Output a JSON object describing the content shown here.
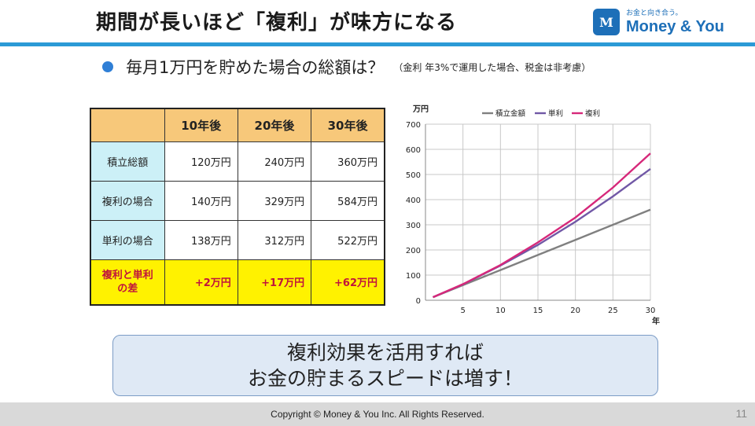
{
  "slide": {
    "title": "期間が長いほど「複利」が味方になる",
    "subtitle": "毎月1万円を貯めた場合の総額は？",
    "subtitle_note": "（金利 年3%で運用した場合、税金は非考慮）",
    "page_number": "11"
  },
  "logo": {
    "tagline": "お金と向き合う。",
    "name": "Money & You",
    "mark": "M"
  },
  "table": {
    "headers": [
      "10年後",
      "20年後",
      "30年後"
    ],
    "rows": [
      {
        "label": "積立総額",
        "values": [
          "120万円",
          "240万円",
          "360万円"
        ]
      },
      {
        "label": "複利の場合",
        "values": [
          "140万円",
          "329万円",
          "584万円"
        ]
      },
      {
        "label": "単利の場合",
        "values": [
          "138万円",
          "312万円",
          "522万円"
        ]
      }
    ],
    "diff_row": {
      "label_line1": "複利と単利",
      "label_line2": "の差",
      "values": [
        "+2万円",
        "+17万円",
        "+62万円"
      ]
    }
  },
  "chart_data": {
    "type": "line",
    "ylabel": "万円",
    "xlabel": "年",
    "ylim": [
      0,
      700
    ],
    "xlim": [
      0,
      30
    ],
    "yticks": [
      0,
      100,
      200,
      300,
      400,
      500,
      600,
      700
    ],
    "xticks": [
      5,
      10,
      15,
      20,
      25,
      30
    ],
    "grid": true,
    "legend": "top",
    "x": [
      1,
      5,
      10,
      15,
      20,
      25,
      30
    ],
    "series": [
      {
        "name": "積立金額",
        "color": "#808080",
        "values": [
          12,
          60,
          120,
          180,
          240,
          300,
          360
        ]
      },
      {
        "name": "単利",
        "color": "#7158a6",
        "values": [
          12,
          63,
          138,
          220,
          312,
          413,
          522
        ]
      },
      {
        "name": "複利",
        "color": "#d6287a",
        "values": [
          12,
          64,
          140,
          230,
          329,
          448,
          584
        ]
      }
    ]
  },
  "callout": {
    "line1": "複利効果を活用すれば",
    "line2": "お金の貯まるスピードは増す！"
  },
  "footer": {
    "copyright": "Copyright © Money & You Inc. All Rights Reserved."
  }
}
